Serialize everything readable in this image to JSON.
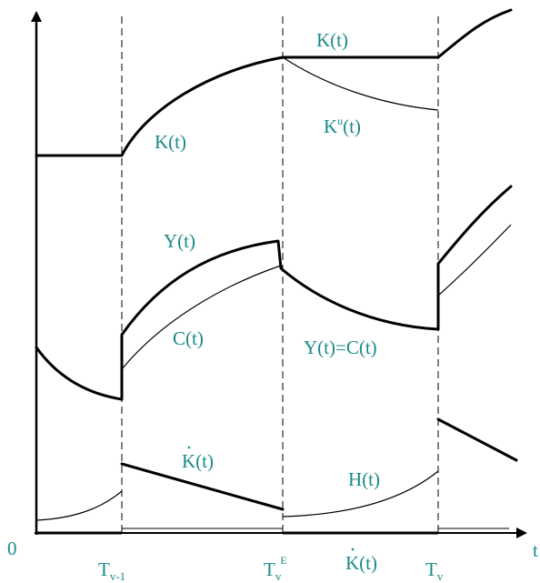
{
  "axis": {
    "origin_label": "0",
    "x_label": "t"
  },
  "ticks": {
    "t_v_minus_1": {
      "base": "T",
      "sub": "v-1"
    },
    "t_v_e": {
      "base": "T",
      "sub": "v",
      "sup": "E"
    },
    "t_v": {
      "base": "T",
      "sub": "v"
    }
  },
  "curves": {
    "k_top": "K(t)",
    "k_mid": "K(t)",
    "k_u": {
      "base": "K",
      "sup": "u",
      "tail": "(t)"
    },
    "y": "Y(t)",
    "c": "C(t)",
    "y_eq_c": "Y(t)=C(t)",
    "k_dot_left": "K(t)",
    "h": "H(t)",
    "k_dot_bottom": "K(t)"
  }
}
